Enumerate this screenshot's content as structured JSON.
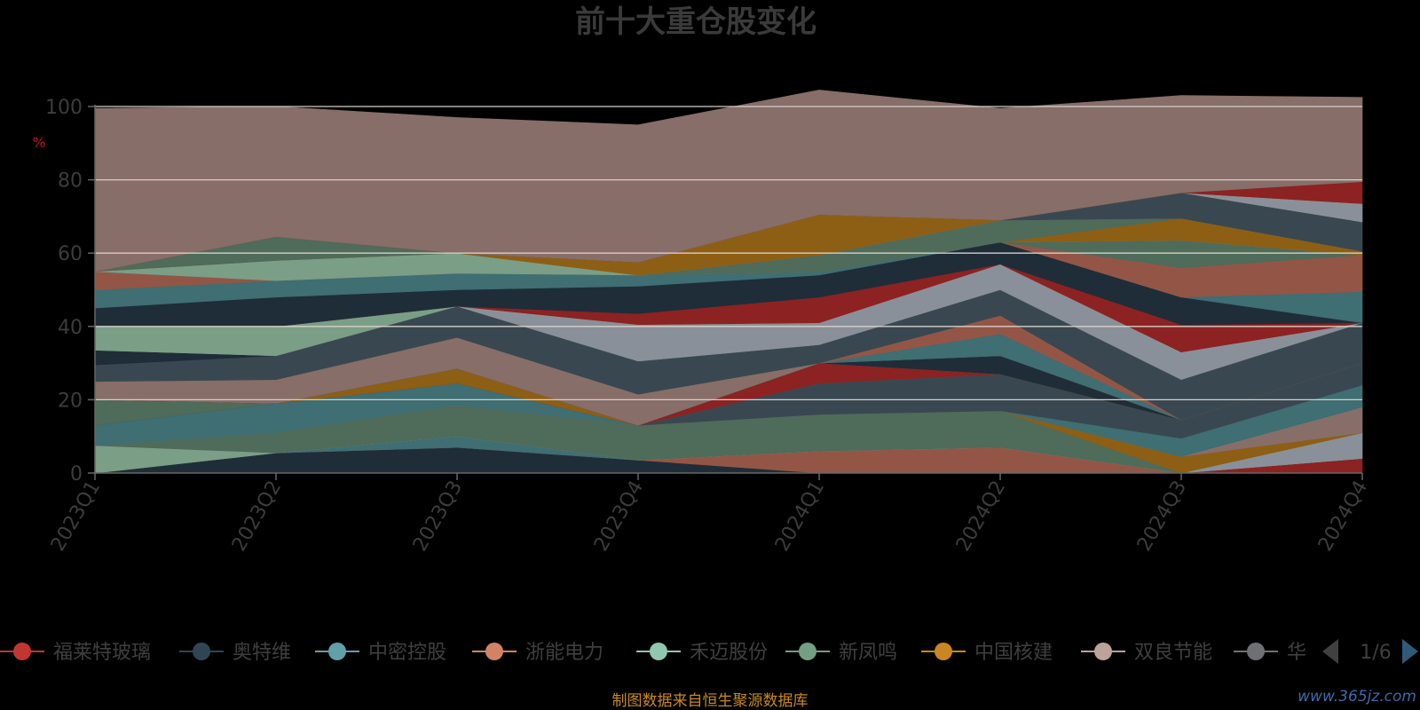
{
  "chart_data": {
    "type": "area",
    "title": "前十大重仓股变化",
    "ylabel": "%",
    "ylim": [
      0,
      100
    ],
    "yticks": [
      0,
      20,
      40,
      60,
      80,
      100
    ],
    "grid": true,
    "stacked": true,
    "categories": [
      "2023Q1",
      "2023Q2",
      "2023Q3",
      "2023Q4",
      "2024Q1",
      "2024Q2",
      "2024Q3",
      "2024Q4"
    ],
    "series": [
      {
        "color": "#8c2222",
        "values": [
          0,
          0,
          0,
          0,
          0,
          0,
          0,
          4
        ]
      },
      {
        "color": "#1f2d38",
        "values": [
          0,
          5.5,
          7,
          3.5,
          0,
          0,
          0,
          0
        ]
      },
      {
        "color": "#935646",
        "values": [
          0,
          0,
          0,
          0,
          6,
          7,
          0,
          0
        ]
      },
      {
        "color": "#3f6e73",
        "values": [
          0,
          0,
          3,
          0,
          0,
          0,
          0,
          0
        ]
      },
      {
        "color": "#7b9e86",
        "values": [
          7.5,
          0,
          0,
          0,
          0,
          0,
          0,
          0
        ]
      },
      {
        "color": "#8a9099",
        "values": [
          0,
          0,
          0,
          0,
          0,
          0,
          0,
          7
        ]
      },
      {
        "color": "#4f6b5a",
        "values": [
          0,
          5.5,
          8.5,
          9.5,
          10,
          10,
          0,
          0
        ]
      },
      {
        "color": "#8d5f14",
        "values": [
          0,
          0,
          0,
          0,
          0,
          0,
          4.5,
          0
        ]
      },
      {
        "color": "#876e68",
        "values": [
          0,
          0,
          0,
          0,
          0,
          0,
          0,
          7
        ]
      },
      {
        "color": "#3f6e73",
        "values": [
          5.5,
          8,
          6,
          0,
          0,
          0,
          5,
          6
        ]
      },
      {
        "color": "#394850",
        "values": [
          0,
          0,
          0,
          0,
          8.5,
          10,
          5,
          6
        ]
      },
      {
        "color": "#4f6b5a",
        "values": [
          7,
          0,
          0,
          0,
          0,
          0,
          0,
          0
        ]
      },
      {
        "color": "#8c2222",
        "values": [
          0,
          0,
          0,
          0,
          5.5,
          0,
          0,
          0
        ]
      },
      {
        "color": "#8d5f14",
        "values": [
          0,
          0,
          4,
          0,
          0,
          0,
          0,
          0
        ]
      },
      {
        "color": "#1f2d38",
        "values": [
          0,
          0,
          0,
          0,
          0,
          5,
          0,
          0
        ]
      },
      {
        "color": "#876e68",
        "values": [
          5,
          6.5,
          8.5,
          8.5,
          0,
          0,
          0,
          0
        ]
      },
      {
        "color": "#3f6e73",
        "values": [
          0,
          0,
          0,
          0,
          0,
          6,
          0,
          0
        ]
      },
      {
        "color": "#935646",
        "values": [
          0,
          0,
          0,
          0,
          0,
          5,
          0,
          0
        ]
      },
      {
        "color": "#394850",
        "values": [
          4.5,
          6.5,
          8.5,
          9,
          5,
          7,
          11,
          11
        ]
      },
      {
        "color": "#1f2d38",
        "values": [
          4,
          0,
          0,
          0,
          0,
          0,
          0,
          0
        ]
      },
      {
        "color": "#8a9099",
        "values": [
          0,
          0,
          0,
          10,
          6,
          7,
          7.5,
          0
        ]
      },
      {
        "color": "#7b9e86",
        "values": [
          6.5,
          8,
          0,
          0,
          0,
          0,
          0,
          0
        ]
      },
      {
        "color": "#8c2222",
        "values": [
          0,
          0,
          0,
          3,
          7,
          0,
          7.5,
          0
        ]
      },
      {
        "color": "#1f2d38",
        "values": [
          5,
          8,
          4.5,
          7.5,
          6,
          6,
          7.5,
          0
        ]
      },
      {
        "color": "#3f6e73",
        "values": [
          5,
          4.5,
          4.5,
          3,
          1,
          0,
          0,
          8.5
        ]
      },
      {
        "color": "#935646",
        "values": [
          5,
          0,
          0,
          0,
          0,
          0,
          8,
          10
        ]
      },
      {
        "color": "#4f6b5a",
        "values": [
          0,
          0,
          0,
          0,
          0,
          0,
          7.5,
          0
        ]
      },
      {
        "color": "#7b9e86",
        "values": [
          0,
          5.5,
          5.5,
          0,
          0,
          0,
          0,
          0
        ]
      },
      {
        "color": "#8d5f14",
        "values": [
          0,
          0,
          0,
          0,
          0,
          0,
          6,
          1
        ]
      },
      {
        "color": "#4f6b5a",
        "values": [
          0,
          6.5,
          0,
          0,
          4.5,
          6,
          0,
          0
        ]
      },
      {
        "color": "#394850",
        "values": [
          0,
          0,
          0,
          0,
          0,
          0,
          7,
          8
        ]
      },
      {
        "color": "#8a9099",
        "values": [
          0,
          0,
          0,
          0,
          0,
          0,
          0,
          5
        ]
      },
      {
        "color": "#876e68",
        "values": [
          0,
          0,
          0,
          0,
          0,
          0,
          0,
          0
        ]
      },
      {
        "color": "#8d5f14",
        "values": [
          0,
          0,
          0,
          3.5,
          11,
          0,
          0,
          0
        ]
      },
      {
        "color": "#8c2222",
        "values": [
          0,
          0,
          0,
          0,
          0,
          0,
          0,
          6
        ]
      },
      {
        "color": "#876e68",
        "values": [
          44.5,
          35.5,
          37,
          37.5,
          34,
          30.5,
          26.5,
          23
        ]
      }
    ],
    "legend": {
      "position": "bottom",
      "items": [
        {
          "name": "福莱特玻璃",
          "color": "#c23531"
        },
        {
          "name": "奥特维",
          "color": "#2f4554"
        },
        {
          "name": "中密控股",
          "color": "#61a0a8"
        },
        {
          "name": "浙能电力",
          "color": "#d48265"
        },
        {
          "name": "禾迈股份",
          "color": "#91c7ae"
        },
        {
          "name": "新凤鸣",
          "color": "#749f83"
        },
        {
          "name": "中国核建",
          "color": "#ca8622"
        },
        {
          "name": "双良节能",
          "color": "#bda29a"
        },
        {
          "name": "华",
          "color": "#6e7074"
        }
      ],
      "page": "1/6"
    }
  },
  "source_note": "制图数据来自恒生聚源数据库",
  "watermark": "www.365jz.com"
}
